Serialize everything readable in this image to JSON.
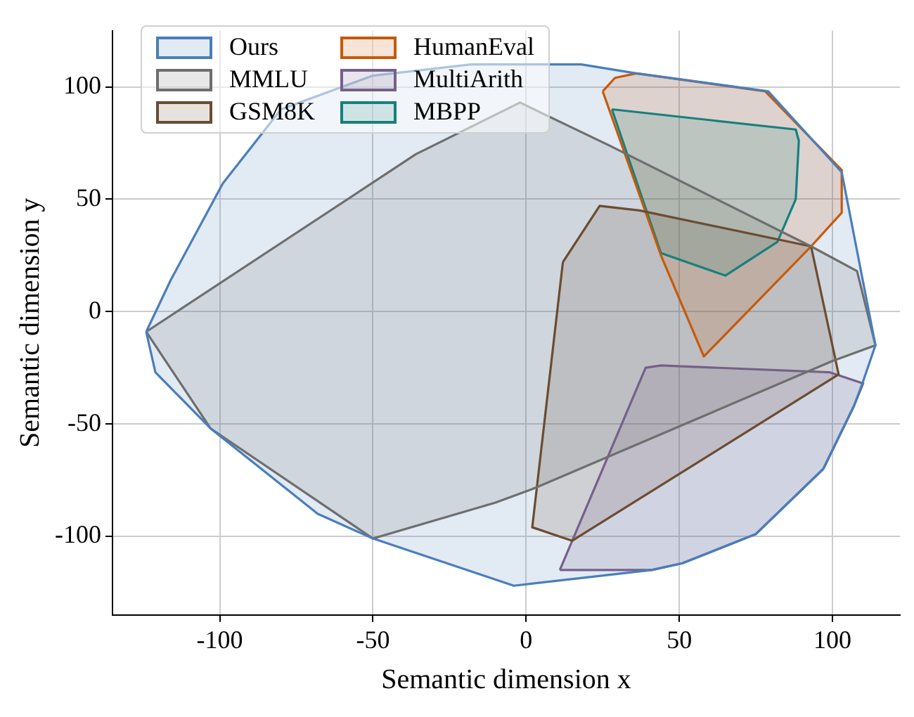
{
  "chart_data": {
    "type": "area",
    "xlabel": "Semantic dimension x",
    "ylabel": "Semantic dimension y",
    "xlim": [
      -135,
      122
    ],
    "ylim": [
      -135,
      125
    ],
    "xticks": [
      -100,
      -50,
      0,
      50,
      100
    ],
    "yticks": [
      -100,
      -50,
      0,
      50,
      100
    ],
    "grid": true,
    "legend": "top left",
    "series": [
      {
        "name": "Ours",
        "color": "#4a7ebb",
        "x": [
          -124,
          -116,
          -99,
          -80,
          -50,
          -18,
          18,
          36,
          79,
          103,
          114,
          110,
          107,
          97,
          75,
          51,
          41,
          -4,
          -50,
          -68,
          -103,
          -121,
          -124
        ],
        "values": [
          -9,
          14,
          57,
          90,
          105,
          110,
          110,
          106,
          98,
          62,
          -15,
          -31,
          -42,
          -70,
          -99,
          -112,
          -115,
          -122,
          -101,
          -90,
          -52,
          -27,
          -9
        ]
      },
      {
        "name": "MMLU",
        "color": "#6e6e6e",
        "x": [
          -124,
          -36,
          -2,
          27,
          93,
          108,
          114,
          100,
          2,
          -10,
          -50,
          -103,
          -124
        ],
        "values": [
          -9,
          70,
          93,
          74,
          29,
          18,
          -15,
          -22,
          -79,
          -85,
          -101,
          -52,
          -9
        ]
      },
      {
        "name": "GSM8K",
        "color": "#6b4c30",
        "x": [
          12,
          24,
          37,
          93,
          102,
          15,
          2,
          12
        ],
        "values": [
          22,
          47,
          45,
          29,
          -28,
          -102,
          -96,
          22
        ]
      },
      {
        "name": "HumanEval",
        "color": "#c65a0a",
        "x": [
          25,
          29,
          36,
          78,
          103,
          103,
          93,
          58,
          44,
          25
        ],
        "values": [
          98,
          104,
          106,
          98,
          63,
          44,
          29,
          -20,
          25,
          98
        ]
      },
      {
        "name": "MultiArith",
        "color": "#76608a",
        "x": [
          11,
          39,
          44,
          99,
          110,
          107,
          97,
          75,
          51,
          41,
          11
        ],
        "values": [
          -115,
          -25,
          -24,
          -27,
          -32,
          -42,
          -70,
          -99,
          -112,
          -115,
          -115
        ]
      },
      {
        "name": "MBPP",
        "color": "#17807e",
        "x": [
          28,
          88,
          89,
          88,
          82,
          65,
          44,
          28
        ],
        "values": [
          90,
          81,
          76,
          50,
          31,
          16,
          26,
          90
        ]
      }
    ]
  }
}
